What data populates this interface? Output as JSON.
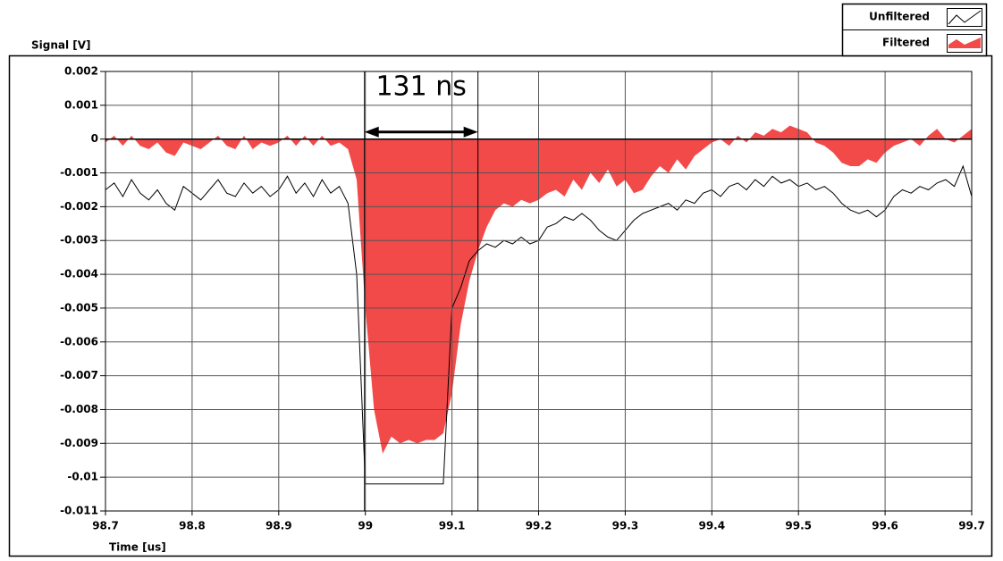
{
  "chart_data": {
    "type": "line",
    "y_label": "Signal [V]",
    "x_label": "Time [us]",
    "xlim": [
      98.7,
      99.7
    ],
    "xticks": [
      98.7,
      98.8,
      98.9,
      99,
      99.1,
      99.2,
      99.3,
      99.4,
      99.5,
      99.6,
      99.7
    ],
    "ylim": [
      -0.011,
      0.002
    ],
    "yticks": [
      0.002,
      0.001,
      0,
      -0.001,
      -0.002,
      -0.003,
      -0.004,
      -0.005,
      -0.006,
      -0.007,
      -0.008,
      -0.009,
      -0.01,
      -0.011
    ],
    "grid": true,
    "legend": "top-right",
    "annotation": {
      "text": "131 ns",
      "x_start": 98.999,
      "x_end": 99.13
    },
    "x": [
      98.7,
      98.71,
      98.72,
      98.73,
      98.74,
      98.75,
      98.76,
      98.77,
      98.78,
      98.79,
      98.8,
      98.81,
      98.82,
      98.83,
      98.84,
      98.85,
      98.86,
      98.87,
      98.88,
      98.89,
      98.9,
      98.91,
      98.92,
      98.93,
      98.94,
      98.95,
      98.96,
      98.97,
      98.98,
      98.99,
      99,
      99.01,
      99.02,
      99.03,
      99.04,
      99.05,
      99.06,
      99.07,
      99.08,
      99.09,
      99.1,
      99.11,
      99.12,
      99.13,
      99.14,
      99.15,
      99.16,
      99.17,
      99.18,
      99.19,
      99.2,
      99.21,
      99.22,
      99.23,
      99.24,
      99.25,
      99.26,
      99.27,
      99.28,
      99.29,
      99.3,
      99.31,
      99.32,
      99.33,
      99.34,
      99.35,
      99.36,
      99.37,
      99.38,
      99.39,
      99.4,
      99.41,
      99.42,
      99.43,
      99.44,
      99.45,
      99.46,
      99.47,
      99.48,
      99.49,
      99.5,
      99.51,
      99.52,
      99.53,
      99.54,
      99.55,
      99.56,
      99.57,
      99.58,
      99.59,
      99.6,
      99.61,
      99.62,
      99.63,
      99.64,
      99.65,
      99.66,
      99.67,
      99.68,
      99.69,
      99.7
    ],
    "series": [
      {
        "name": "Unfiltered",
        "color": "#000000",
        "area": false,
        "values": [
          -0.0015,
          -0.0013,
          -0.0017,
          -0.0012,
          -0.0016,
          -0.0018,
          -0.0015,
          -0.0019,
          -0.0021,
          -0.0014,
          -0.0016,
          -0.0018,
          -0.0015,
          -0.0012,
          -0.0016,
          -0.0017,
          -0.0013,
          -0.0016,
          -0.0014,
          -0.0017,
          -0.0015,
          -0.0011,
          -0.0016,
          -0.0013,
          -0.0017,
          -0.0012,
          -0.0016,
          -0.0014,
          -0.0019,
          -0.004,
          -0.0102,
          -0.0102,
          -0.0102,
          -0.0102,
          -0.0102,
          -0.0102,
          -0.0102,
          -0.0102,
          -0.0102,
          -0.0102,
          -0.005,
          -0.0044,
          -0.0036,
          -0.0033,
          -0.0031,
          -0.0032,
          -0.003,
          -0.0031,
          -0.0029,
          -0.0031,
          -0.003,
          -0.0026,
          -0.0025,
          -0.0023,
          -0.0024,
          -0.0022,
          -0.0024,
          -0.0027,
          -0.0029,
          -0.003,
          -0.0027,
          -0.0024,
          -0.0022,
          -0.0021,
          -0.002,
          -0.0019,
          -0.0021,
          -0.0018,
          -0.0019,
          -0.0016,
          -0.0015,
          -0.0017,
          -0.0014,
          -0.0013,
          -0.0015,
          -0.0012,
          -0.0014,
          -0.0011,
          -0.0013,
          -0.0012,
          -0.0014,
          -0.0013,
          -0.0015,
          -0.0014,
          -0.0016,
          -0.0019,
          -0.0021,
          -0.0022,
          -0.0021,
          -0.0023,
          -0.0021,
          -0.0017,
          -0.0015,
          -0.0016,
          -0.0014,
          -0.0015,
          -0.0013,
          -0.0012,
          -0.0014,
          -0.0008,
          -0.0017
        ]
      },
      {
        "name": "Filtered",
        "color": "#f24949",
        "area": true,
        "values": [
          -0.0001,
          0.0001,
          -0.0002,
          0.0001,
          -0.0002,
          -0.0003,
          -0.0001,
          -0.0004,
          -0.0005,
          -0.0001,
          -0.0002,
          -0.0003,
          -0.0001,
          0.0001,
          -0.0002,
          -0.0003,
          0.0001,
          -0.0003,
          -0.0001,
          -0.0002,
          -0.0001,
          0.0001,
          -0.0002,
          0.0001,
          -0.0002,
          0.0001,
          -0.0002,
          -0.0001,
          -0.0003,
          -0.0012,
          -0.005,
          -0.008,
          -0.0093,
          -0.0088,
          -0.009,
          -0.0089,
          -0.009,
          -0.0089,
          -0.0089,
          -0.0087,
          -0.0075,
          -0.0055,
          -0.0042,
          -0.0033,
          -0.0026,
          -0.0021,
          -0.0019,
          -0.002,
          -0.0018,
          -0.0019,
          -0.0018,
          -0.0016,
          -0.0015,
          -0.0017,
          -0.0012,
          -0.0015,
          -0.001,
          -0.0013,
          -0.0009,
          -0.0014,
          -0.0012,
          -0.0016,
          -0.0015,
          -0.0011,
          -0.0008,
          -0.001,
          -0.0006,
          -0.0009,
          -0.0005,
          -0.0003,
          -0.0001,
          0,
          -0.0002,
          0.0001,
          -0.0001,
          0.0002,
          0.0001,
          0.0003,
          0.0002,
          0.0004,
          0.0003,
          0.0002,
          -0.0001,
          -0.0002,
          -0.0004,
          -0.0007,
          -0.0008,
          -0.0008,
          -0.0006,
          -0.0007,
          -0.0004,
          -0.0002,
          -0.0001,
          0,
          -0.0002,
          0.0001,
          0.0003,
          0,
          -0.0001,
          0.0001,
          0.0003
        ]
      }
    ]
  }
}
